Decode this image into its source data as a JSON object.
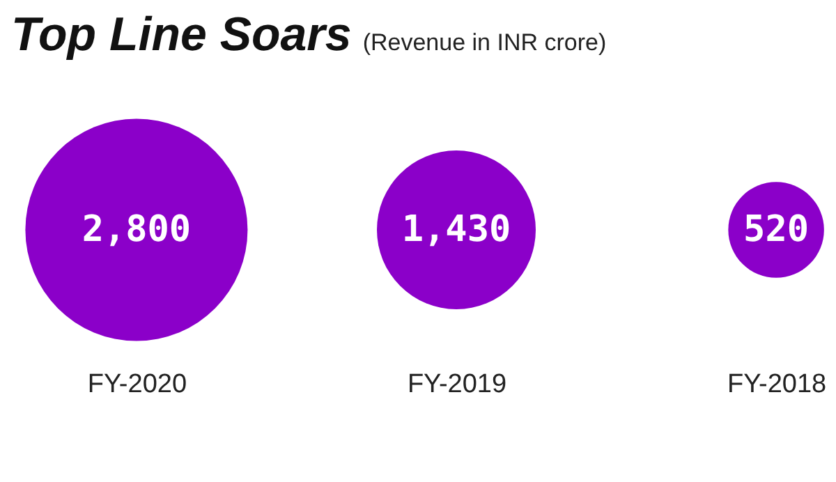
{
  "chart_data": {
    "type": "other",
    "title": "Top Line Soars",
    "subtitle": "(Revenue in INR crore)",
    "categories": [
      "FY-2020",
      "FY-2019",
      "FY-2018"
    ],
    "values": [
      2800,
      1430,
      520
    ],
    "color": "#8b00c9",
    "value_labels": [
      "2,800",
      "1,430",
      "520"
    ]
  }
}
